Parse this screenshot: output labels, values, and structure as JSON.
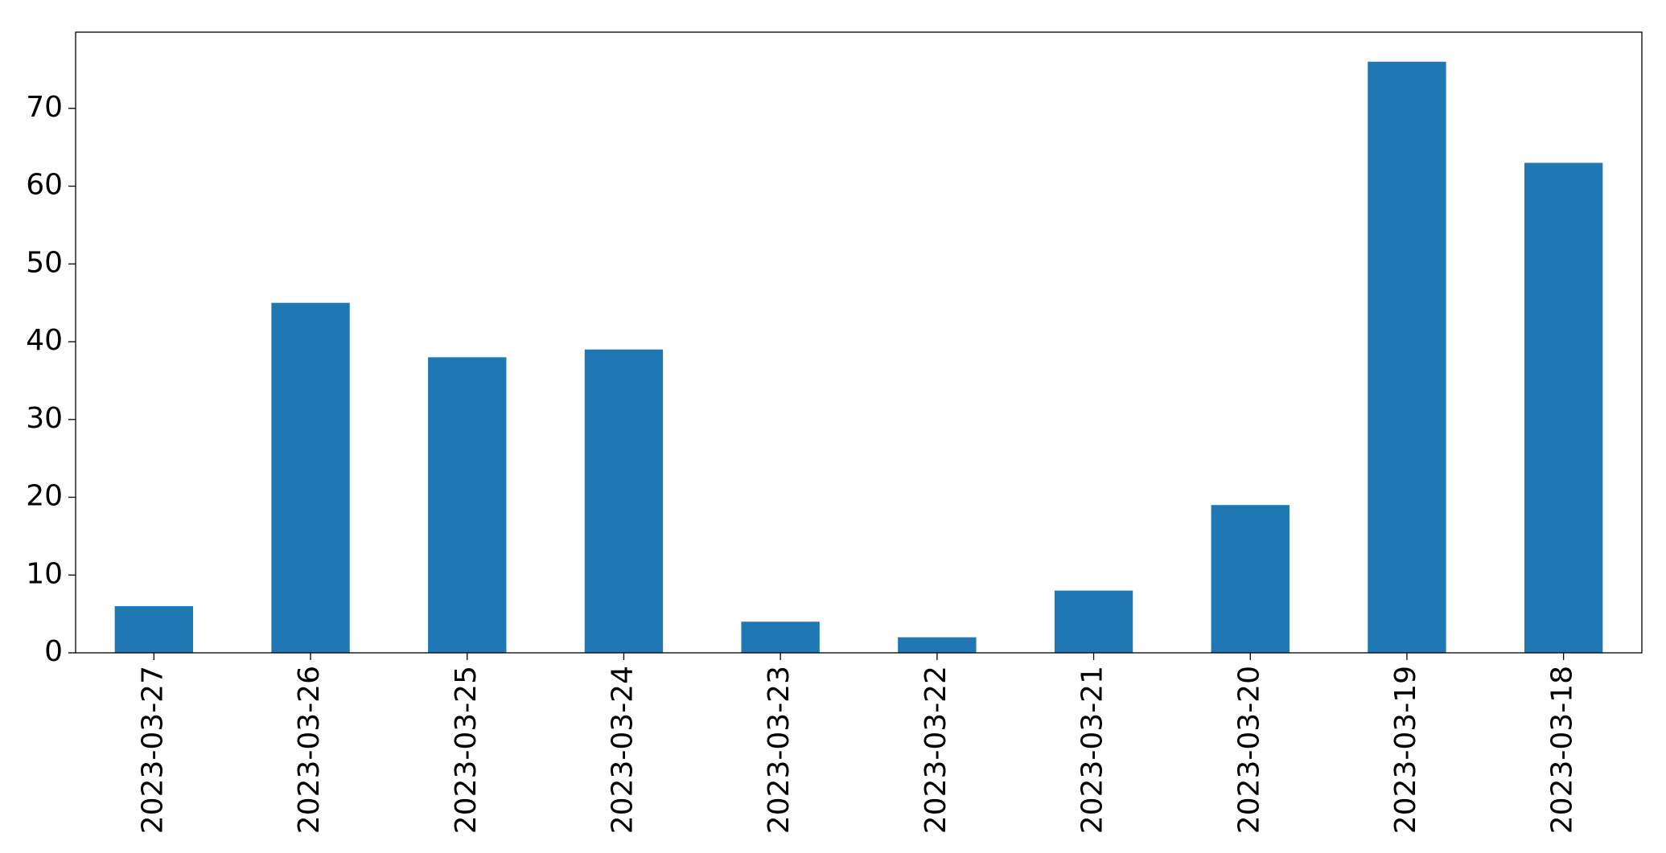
{
  "chart_data": {
    "type": "bar",
    "categories": [
      "2023-03-27",
      "2023-03-26",
      "2023-03-25",
      "2023-03-24",
      "2023-03-23",
      "2023-03-22",
      "2023-03-21",
      "2023-03-20",
      "2023-03-19",
      "2023-03-18"
    ],
    "values": [
      6,
      45,
      38,
      39,
      4,
      2,
      8,
      19,
      76,
      63
    ],
    "color": "#1f77b4",
    "ylim": [
      0,
      79.8
    ],
    "yticks": [
      0,
      10,
      20,
      30,
      40,
      50,
      60,
      70
    ],
    "grid": false
  }
}
